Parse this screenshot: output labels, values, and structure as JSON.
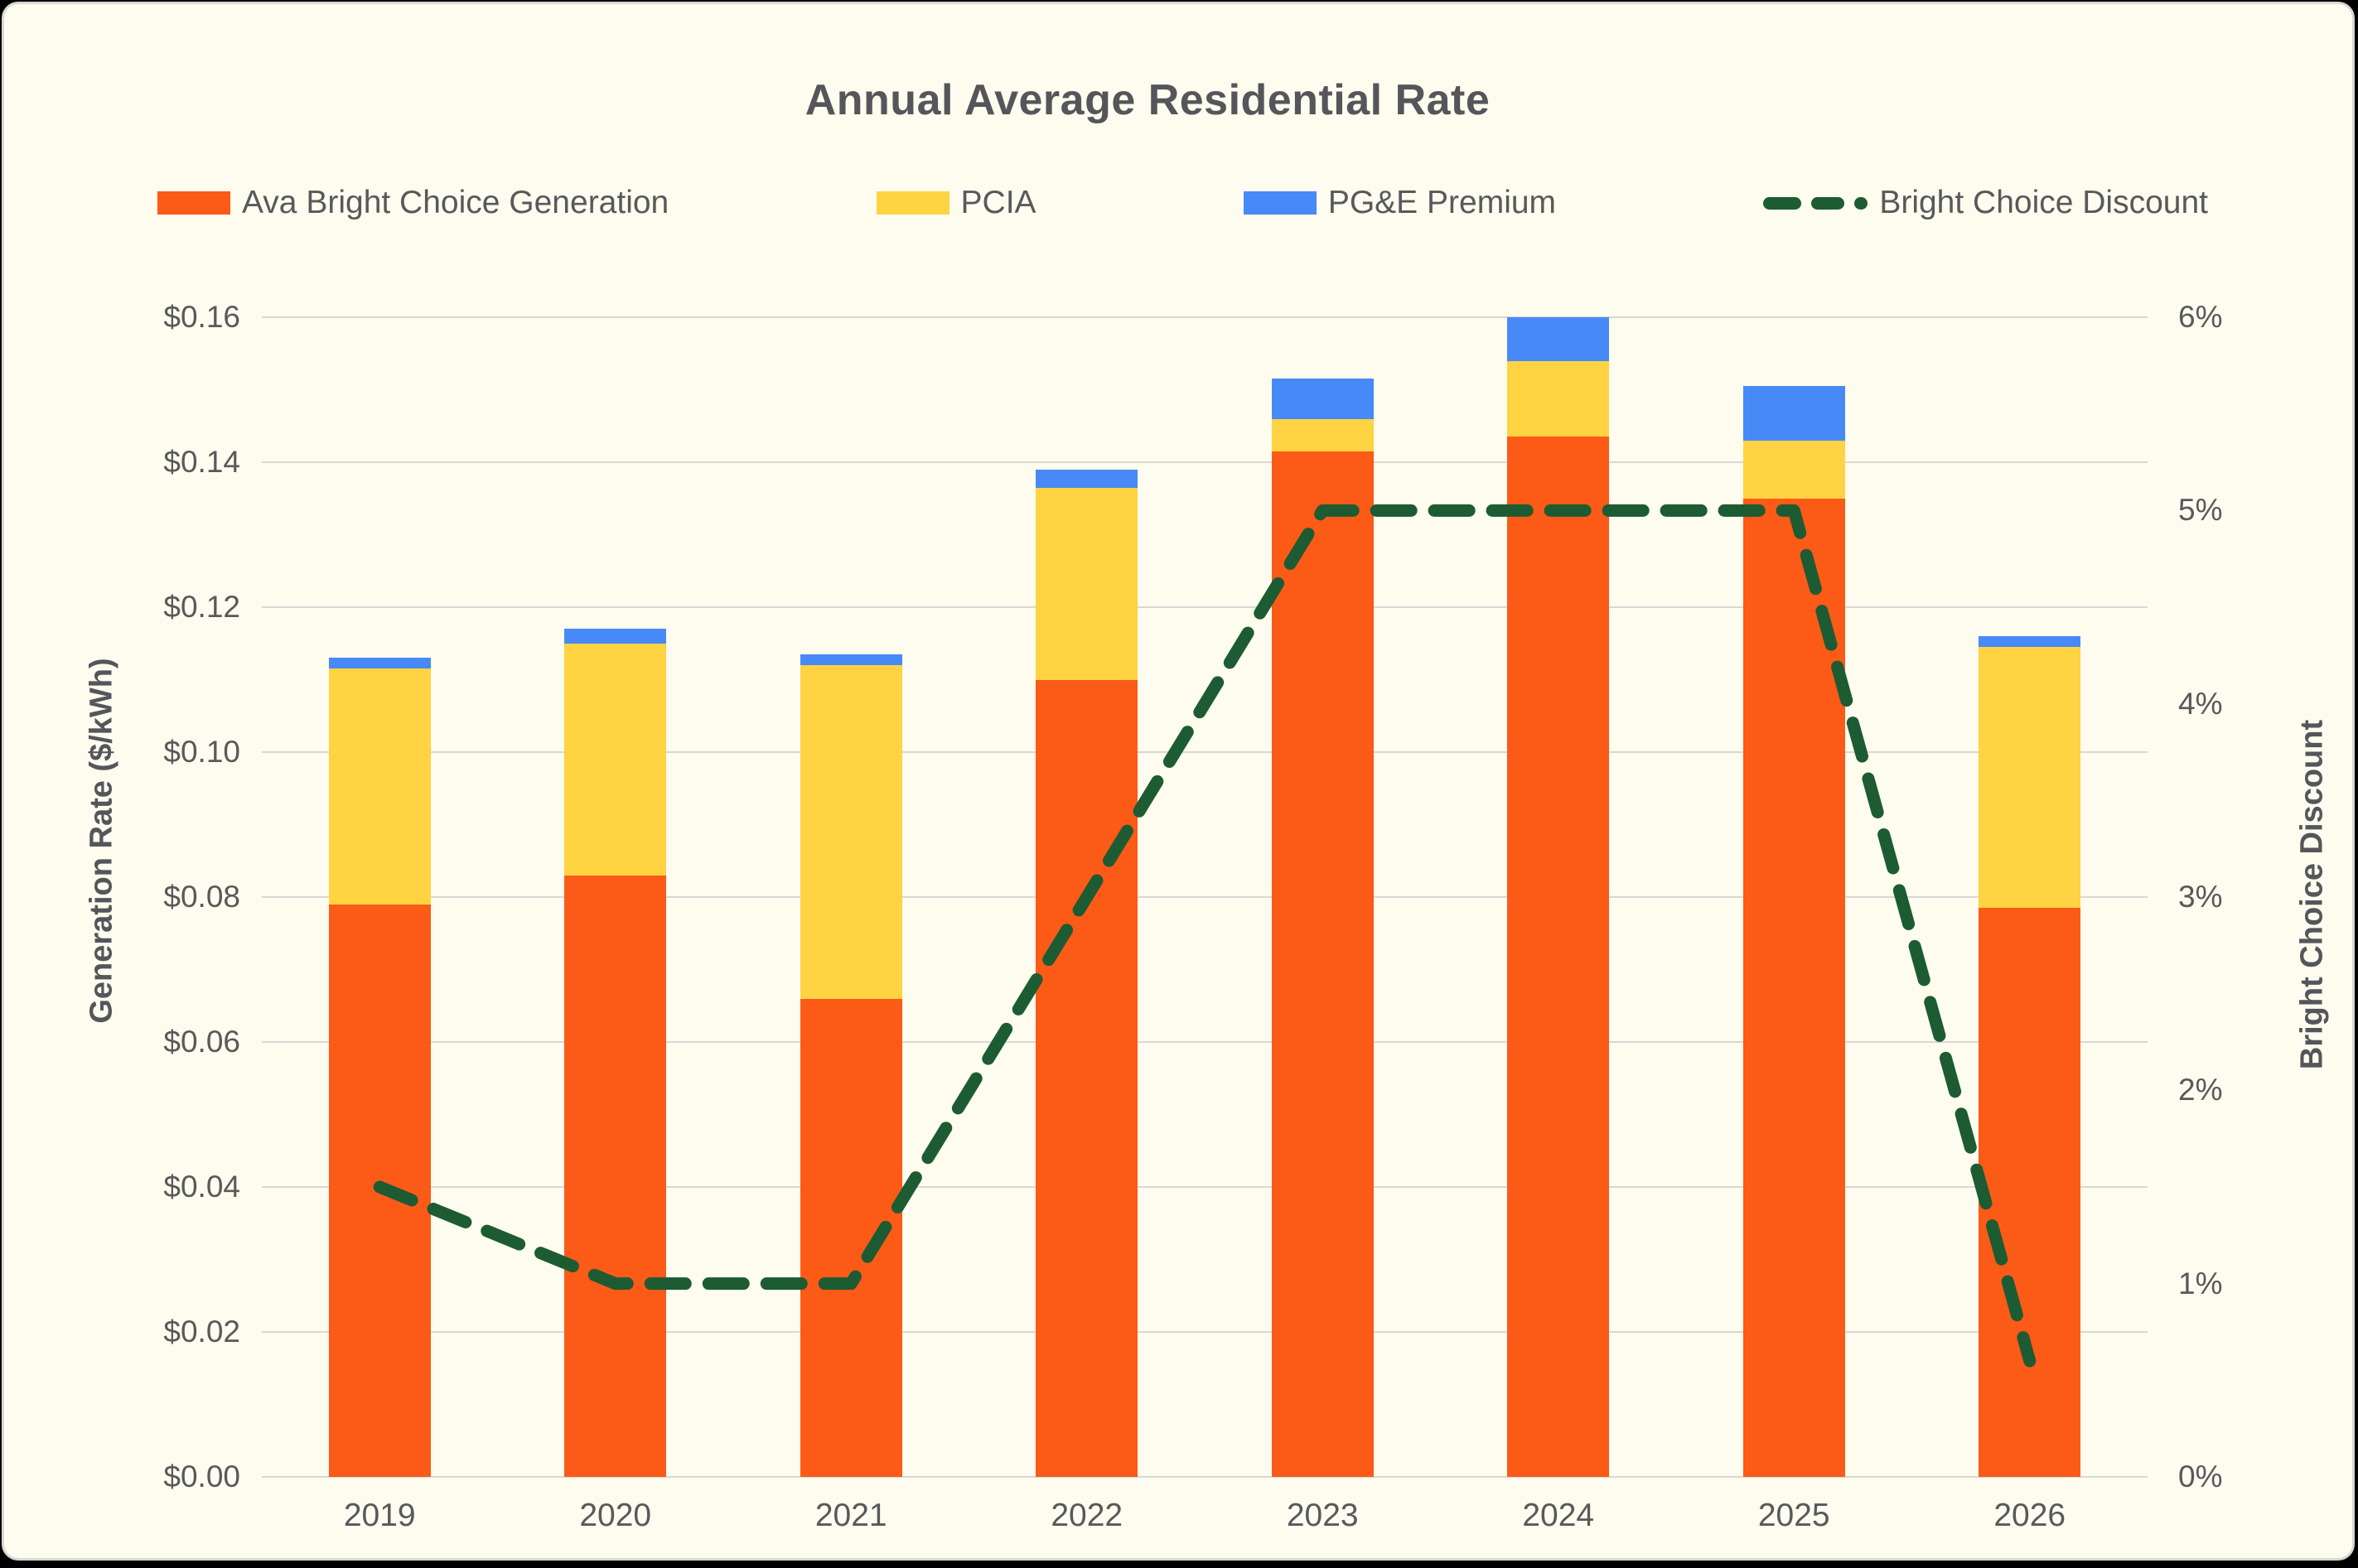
{
  "chart": {
    "title": "Annual Average Residential Rate",
    "panel_background": "#FDFCEE",
    "outer_background": "#000000",
    "grid_color": "#D7D7D7",
    "text_color": "#58595B"
  },
  "chart_data": {
    "type": "bar",
    "subtype": "stacked-bars-with-line-overlay",
    "title": "Annual Average Residential Rate",
    "categories": [
      "2019",
      "2020",
      "2021",
      "2022",
      "2023",
      "2024",
      "2025",
      "2026"
    ],
    "bar_series": [
      {
        "name": "Ava Bright Choice Generation",
        "color": "#FB5A17",
        "values": [
          0.079,
          0.083,
          0.066,
          0.11,
          0.1415,
          0.1435,
          0.135,
          0.0785
        ]
      },
      {
        "name": "PCIA",
        "color": "#FFD342",
        "values": [
          0.0325,
          0.032,
          0.046,
          0.0265,
          0.0045,
          0.0105,
          0.008,
          0.036
        ]
      },
      {
        "name": "PG&E Premium",
        "color": "#4789F7",
        "values": [
          0.0015,
          0.002,
          0.0015,
          0.0025,
          0.0055,
          0.006,
          0.0075,
          0.0015
        ]
      }
    ],
    "bar_totals": [
      0.113,
      0.117,
      0.1135,
      0.139,
      0.1515,
      0.16,
      0.1505,
      0.116
    ],
    "line_series": {
      "name": "Bright Choice Discount",
      "color": "#1D5B33",
      "style": "dashed",
      "axis": "right",
      "values_percent": [
        1.5,
        1.0,
        1.0,
        3.0,
        5.0,
        5.0,
        5.0,
        0.6
      ]
    },
    "left_axis": {
      "label": "Generation Rate ($/kWh)",
      "min": 0,
      "max": 0.16,
      "ticks": [
        "$0.00",
        "$0.02",
        "$0.04",
        "$0.06",
        "$0.08",
        "$0.10",
        "$0.12",
        "$0.14",
        "$0.16"
      ]
    },
    "right_axis": {
      "label": "Bright Choice Discount",
      "min": 0,
      "max": 6,
      "ticks": [
        "0%",
        "1%",
        "2%",
        "3%",
        "4%",
        "5%",
        "6%"
      ]
    },
    "grid": "horizontal",
    "legend_position": "top"
  }
}
